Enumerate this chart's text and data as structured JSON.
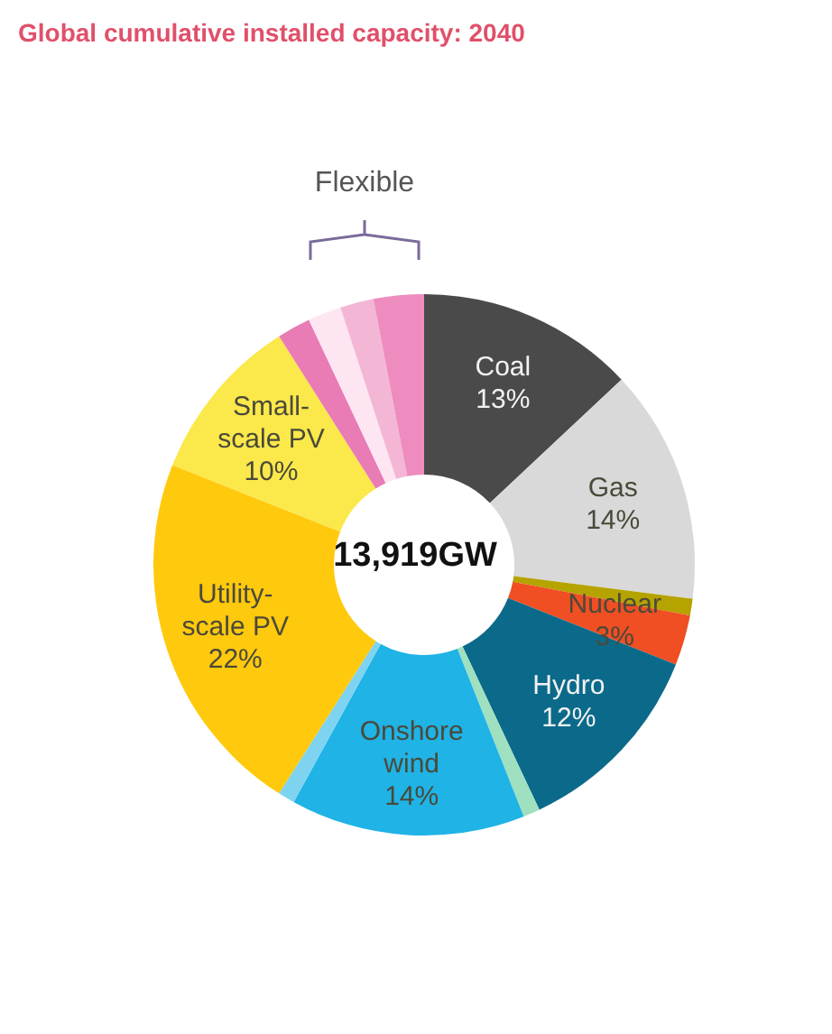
{
  "chart_data": {
    "type": "donut",
    "title": "Global cumulative installed capacity: 2040",
    "categories": [
      "Coal",
      "Gas",
      null,
      "Nuclear",
      "Hydro",
      null,
      "Onshore wind",
      null,
      "Utility-scale PV",
      "Small-scale PV",
      null,
      null,
      null,
      null
    ],
    "values": [
      13,
      14,
      1,
      3,
      12,
      1,
      14,
      1,
      22,
      10,
      2,
      2,
      2,
      3
    ],
    "value_labels": [
      "13%",
      "14%",
      null,
      "3%",
      "12%",
      null,
      "14%",
      null,
      "22%",
      "10%",
      null,
      null,
      null,
      null
    ],
    "colors": [
      "#4a4a4a",
      "#d9d9d9",
      "#b5a300",
      "#f04e23",
      "#0b6a8a",
      "#9ee0c0",
      "#1fb3e6",
      "#7dd3f0",
      "#ffc90e",
      "#fbe84a",
      "#e97bb5",
      "#fde6f2",
      "#f4b6d5",
      "#ee8cbf"
    ],
    "annotations": [
      "Flexible",
      "13,919GW"
    ]
  }
}
